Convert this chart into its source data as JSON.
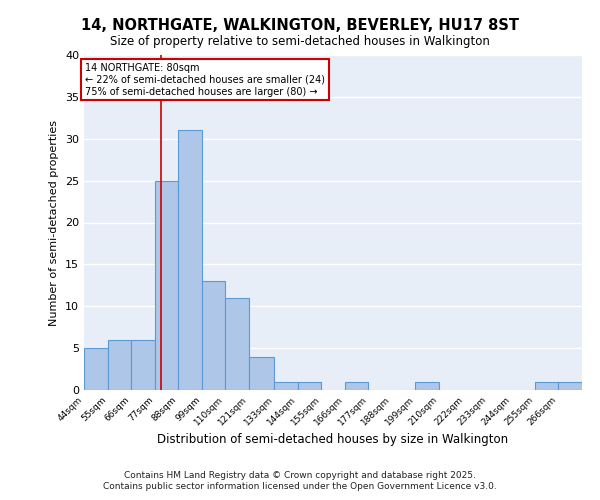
{
  "title1": "14, NORTHGATE, WALKINGTON, BEVERLEY, HU17 8ST",
  "title2": "Size of property relative to semi-detached houses in Walkington",
  "xlabel": "Distribution of semi-detached houses by size in Walkington",
  "ylabel": "Number of semi-detached properties",
  "bin_labels": [
    "44sqm",
    "55sqm",
    "66sqm",
    "77sqm",
    "88sqm",
    "99sqm",
    "110sqm",
    "121sqm",
    "133sqm",
    "144sqm",
    "155sqm",
    "166sqm",
    "177sqm",
    "188sqm",
    "199sqm",
    "210sqm",
    "222sqm",
    "233sqm",
    "244sqm",
    "255sqm",
    "266sqm"
  ],
  "bin_edges": [
    44,
    55,
    66,
    77,
    88,
    99,
    110,
    121,
    133,
    144,
    155,
    166,
    177,
    188,
    199,
    210,
    222,
    233,
    244,
    255,
    266,
    277
  ],
  "counts": [
    5,
    6,
    6,
    25,
    31,
    13,
    11,
    4,
    1,
    1,
    0,
    1,
    0,
    0,
    1,
    0,
    0,
    0,
    0,
    1,
    1
  ],
  "bar_color": "#aec6e8",
  "bar_edge_color": "#5b9bd5",
  "bar_linewidth": 0.8,
  "red_line_x": 80,
  "annotation_line1": "14 NORTHGATE: 80sqm",
  "annotation_line2": "← 22% of semi-detached houses are smaller (24)",
  "annotation_line3": "75% of semi-detached houses are larger (80) →",
  "annotation_box_color": "white",
  "annotation_box_edge_color": "#cc0000",
  "footnote1": "Contains HM Land Registry data © Crown copyright and database right 2025.",
  "footnote2": "Contains public sector information licensed under the Open Government Licence v3.0.",
  "background_color": "#e8eef8",
  "grid_color": "white",
  "ylim": [
    0,
    40
  ],
  "yticks": [
    0,
    5,
    10,
    15,
    20,
    25,
    30,
    35,
    40
  ]
}
